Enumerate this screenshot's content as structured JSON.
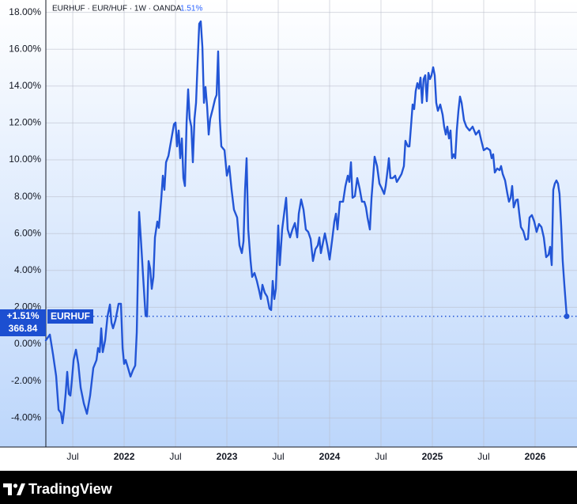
{
  "header": {
    "info": "EURHUF · EUR/HUF · 1W · OANDA",
    "change": "1.51%"
  },
  "price_tag": {
    "change": "+1.51%",
    "price": "366.84",
    "symbol": "EURHUF"
  },
  "footer": {
    "brand": "TradingView"
  },
  "chart_data": {
    "type": "line",
    "x": [
      2021.238,
      2021.277,
      2021.308,
      2021.338,
      2021.362,
      2021.385,
      2021.4,
      2021.415,
      2021.431,
      2021.446,
      2021.462,
      2021.477,
      2021.492,
      2021.508,
      2021.531,
      2021.554,
      2021.577,
      2021.608,
      2021.638,
      2021.669,
      2021.7,
      2021.731,
      2021.746,
      2021.762,
      2021.777,
      2021.792,
      2021.815,
      2021.838,
      2021.862,
      2021.877,
      2021.892,
      2021.915,
      2021.946,
      2021.969,
      2021.985,
      2022,
      2022.015,
      2022.038,
      2022.062,
      2022.085,
      2022.108,
      2022.123,
      2022.146,
      2022.162,
      2022.185,
      2022.208,
      2022.223,
      2022.238,
      2022.254,
      2022.269,
      2022.285,
      2022.3,
      2022.323,
      2022.338,
      2022.362,
      2022.377,
      2022.392,
      2022.408,
      2022.431,
      2022.454,
      2022.485,
      2022.5,
      2022.515,
      2022.531,
      2022.546,
      2022.562,
      2022.577,
      2022.592,
      2022.608,
      2022.623,
      2022.638,
      2022.654,
      2022.669,
      2022.685,
      2022.7,
      2022.715,
      2022.731,
      2022.746,
      2022.762,
      2022.777,
      2022.792,
      2022.808,
      2022.823,
      2022.838,
      2022.862,
      2022.885,
      2022.9,
      2022.915,
      2022.931,
      2022.946,
      2022.977,
      2023,
      2023.023,
      2023.046,
      2023.069,
      2023.1,
      2023.123,
      2023.146,
      2023.162,
      2023.177,
      2023.192,
      2023.208,
      2023.231,
      2023.246,
      2023.269,
      2023.292,
      2023.315,
      2023.331,
      2023.346,
      2023.369,
      2023.392,
      2023.415,
      2023.431,
      2023.446,
      2023.462,
      2023.477,
      2023.5,
      2023.515,
      2023.538,
      2023.562,
      2023.577,
      2023.592,
      2023.615,
      2023.638,
      2023.662,
      2023.685,
      2023.7,
      2023.723,
      2023.746,
      2023.769,
      2023.792,
      2023.815,
      2023.838,
      2023.862,
      2023.885,
      2023.9,
      2023.915,
      2023.938,
      2023.954,
      2023.977,
      2024,
      2024.023,
      2024.046,
      2024.062,
      2024.077,
      2024.1,
      2024.131,
      2024.154,
      2024.177,
      2024.192,
      2024.208,
      2024.223,
      2024.246,
      2024.269,
      2024.292,
      2024.315,
      2024.338,
      2024.354,
      2024.369,
      2024.392,
      2024.408,
      2024.423,
      2024.438,
      2024.462,
      2024.485,
      2024.508,
      2024.531,
      2024.546,
      2024.569,
      2024.577,
      2024.592,
      2024.615,
      2024.638,
      2024.654,
      2024.677,
      2024.7,
      2024.723,
      2024.738,
      2024.762,
      2024.777,
      2024.792,
      2024.808,
      2024.823,
      2024.838,
      2024.854,
      2024.869,
      2024.885,
      2024.9,
      2024.915,
      2024.931,
      2024.946,
      2024.962,
      2024.977,
      2024.992,
      2025.008,
      2025.023,
      2025.038,
      2025.054,
      2025.077,
      2025.1,
      2025.115,
      2025.131,
      2025.146,
      2025.162,
      2025.177,
      2025.192,
      2025.208,
      2025.223,
      2025.238,
      2025.254,
      2025.269,
      2025.285,
      2025.308,
      2025.331,
      2025.362,
      2025.392,
      2025.423,
      2025.454,
      2025.477,
      2025.5,
      2025.531,
      2025.562,
      2025.577,
      2025.592,
      2025.608,
      2025.631,
      2025.654,
      2025.669,
      2025.685,
      2025.708,
      2025.731,
      2025.746,
      2025.762,
      2025.777,
      2025.792,
      2025.815,
      2025.831,
      2025.846,
      2025.862,
      2025.885,
      2025.908,
      2025.931,
      2025.946,
      2025.969,
      2025.992,
      2026.015,
      2026.038,
      2026.062,
      2026.085,
      2026.108,
      2026.131,
      2026.146,
      2026.162,
      2026.177,
      2026.192,
      2026.208,
      2026.223,
      2026.238,
      2026.254,
      2026.269,
      2026.285,
      2026.308
    ],
    "series": [
      {
        "name": "EURHUF",
        "color": "#2255d6",
        "values": [
          0.21,
          0.52,
          -0.56,
          -1.72,
          -3.56,
          -3.73,
          -4.29,
          -3.65,
          -2.66,
          -1.5,
          -2.7,
          -2.79,
          -1.93,
          -0.86,
          -0.3,
          -1.07,
          -2.36,
          -3.22,
          -3.78,
          -2.79,
          -1.29,
          -0.86,
          -0.21,
          -0.43,
          0.86,
          -0.43,
          0.21,
          1.5,
          2.15,
          1.16,
          0.86,
          1.29,
          2.19,
          2.19,
          -0.21,
          -1.07,
          -0.86,
          -1.29,
          -1.76,
          -1.42,
          -1.16,
          0.64,
          7.17,
          5.79,
          3.65,
          1.59,
          1.5,
          4.51,
          4.08,
          3.0,
          3.65,
          5.79,
          6.65,
          6.31,
          7.94,
          9.14,
          8.37,
          9.87,
          10.21,
          10.94,
          11.93,
          12.02,
          10.73,
          11.59,
          10.09,
          11.16,
          9.01,
          8.58,
          12.02,
          13.82,
          12.23,
          11.8,
          9.87,
          12.23,
          13.09,
          15.24,
          17.38,
          17.51,
          16.09,
          13.09,
          13.95,
          12.88,
          11.37,
          12.23,
          12.75,
          13.3,
          13.52,
          15.88,
          12.23,
          10.73,
          10.52,
          9.14,
          9.66,
          8.37,
          7.3,
          6.87,
          5.36,
          4.94,
          5.58,
          8.37,
          10.09,
          6.22,
          4.51,
          3.65,
          3.86,
          3.43,
          2.88,
          2.45,
          3.22,
          2.79,
          2.58,
          1.93,
          1.85,
          3.43,
          2.45,
          3.0,
          6.44,
          4.29,
          6.22,
          7.3,
          7.94,
          6.22,
          5.79,
          6.22,
          6.57,
          5.79,
          7.08,
          7.85,
          7.3,
          6.22,
          6.09,
          5.71,
          4.51,
          5.15,
          5.36,
          5.79,
          4.94,
          5.58,
          6.01,
          5.36,
          4.59,
          5.58,
          6.65,
          7.08,
          6.22,
          7.73,
          7.73,
          8.58,
          9.14,
          8.8,
          9.87,
          7.94,
          8.03,
          9.01,
          8.45,
          7.73,
          7.73,
          7.42,
          6.87,
          6.22,
          7.94,
          9.01,
          10.17,
          9.66,
          8.71,
          8.45,
          8.15,
          8.58,
          9.66,
          10.09,
          9.01,
          9.01,
          9.14,
          8.8,
          9.01,
          9.23,
          9.66,
          11.03,
          10.73,
          10.73,
          11.8,
          13.0,
          12.75,
          13.73,
          14.16,
          13.86,
          14.46,
          13.09,
          14.38,
          14.59,
          13.18,
          14.72,
          14.38,
          14.59,
          15.02,
          14.59,
          13.09,
          12.66,
          13.0,
          12.45,
          11.8,
          11.37,
          11.8,
          11.16,
          11.59,
          10.09,
          10.3,
          10.09,
          11.59,
          12.66,
          13.43,
          13.09,
          12.15,
          11.8,
          11.59,
          11.8,
          11.37,
          11.59,
          11.03,
          10.52,
          10.64,
          10.52,
          10.09,
          10.3,
          9.31,
          9.53,
          9.44,
          9.66,
          9.23,
          8.88,
          8.15,
          7.73,
          7.94,
          8.58,
          7.42,
          7.81,
          7.85,
          7.08,
          6.35,
          6.14,
          5.67,
          5.71,
          6.87,
          7.0,
          6.65,
          6.09,
          6.52,
          6.35,
          5.79,
          4.72,
          4.85,
          5.28,
          4.29,
          8.37,
          8.71,
          8.88,
          8.71,
          8.15,
          6.44,
          4.51,
          3.22,
          1.51
        ]
      }
    ],
    "xlim": [
      2021.238,
      2026.408
    ],
    "ylim": [
      -5.58,
      18.67
    ],
    "xticks": [
      {
        "value": 2021.5,
        "label": "Jul"
      },
      2022,
      {
        "value": 2022.5,
        "label": "Jul"
      },
      2023,
      {
        "value": 2023.5,
        "label": "Jul"
      },
      2024,
      {
        "value": 2024.5,
        "label": "Jul"
      },
      2025,
      {
        "value": 2025.5,
        "label": "Jul"
      },
      2026
    ],
    "yticks": [
      {
        "value": -4,
        "label": "-4.00%"
      },
      {
        "value": -2,
        "label": "-2.00%"
      },
      {
        "value": 0,
        "label": "0.00%"
      },
      {
        "value": 2,
        "label": "2.00%"
      },
      {
        "value": 4,
        "label": "4.00%"
      },
      {
        "value": 6,
        "label": "6.00%"
      },
      {
        "value": 8,
        "label": "8.00%"
      },
      {
        "value": 10,
        "label": "10.00%"
      },
      {
        "value": 12,
        "label": "12.00%"
      },
      {
        "value": 14,
        "label": "14.00%"
      },
      {
        "value": 16,
        "label": "16.00%"
      },
      {
        "value": 18,
        "label": "18.00%"
      }
    ],
    "grid": true
  }
}
